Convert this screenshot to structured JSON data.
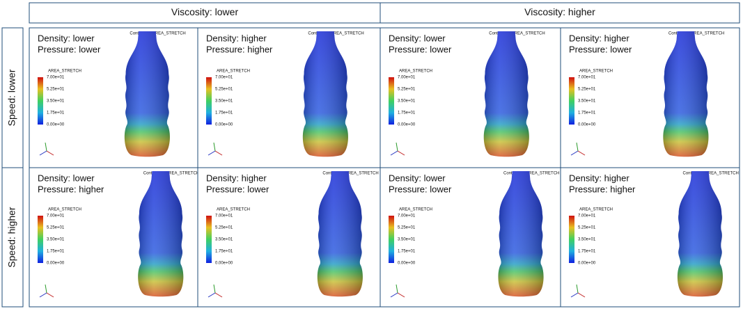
{
  "columns": [
    "Viscosity: lower",
    "Viscosity: higher"
  ],
  "rows": [
    "Speed: lower",
    "Speed: higher"
  ],
  "cells": [
    [
      {
        "density": "Density: lower",
        "pressure": "Pressure: lower"
      },
      {
        "density": "Density: higher",
        "pressure": "Pressure: higher"
      },
      {
        "density": "Density: lower",
        "pressure": "Pressure: lower"
      },
      {
        "density": "Density: higher",
        "pressure": "Pressure: lower"
      }
    ],
    [
      {
        "density": "Density: lower",
        "pressure": "Pressure: higher"
      },
      {
        "density": "Density: higher",
        "pressure": "Pressure: lower"
      },
      {
        "density": "Density: lower",
        "pressure": "Pressure: lower"
      },
      {
        "density": "Density: higher",
        "pressure": "Pressure: higher"
      }
    ]
  ],
  "plot": {
    "title": "Contours of AREA_STRETCH",
    "legend_title": "AREA_STRETCH",
    "legend_ticks": [
      "7.00e+01",
      "5.25e+01",
      "3.50e+01",
      "1.75e+01",
      "0.00e+00"
    ]
  }
}
